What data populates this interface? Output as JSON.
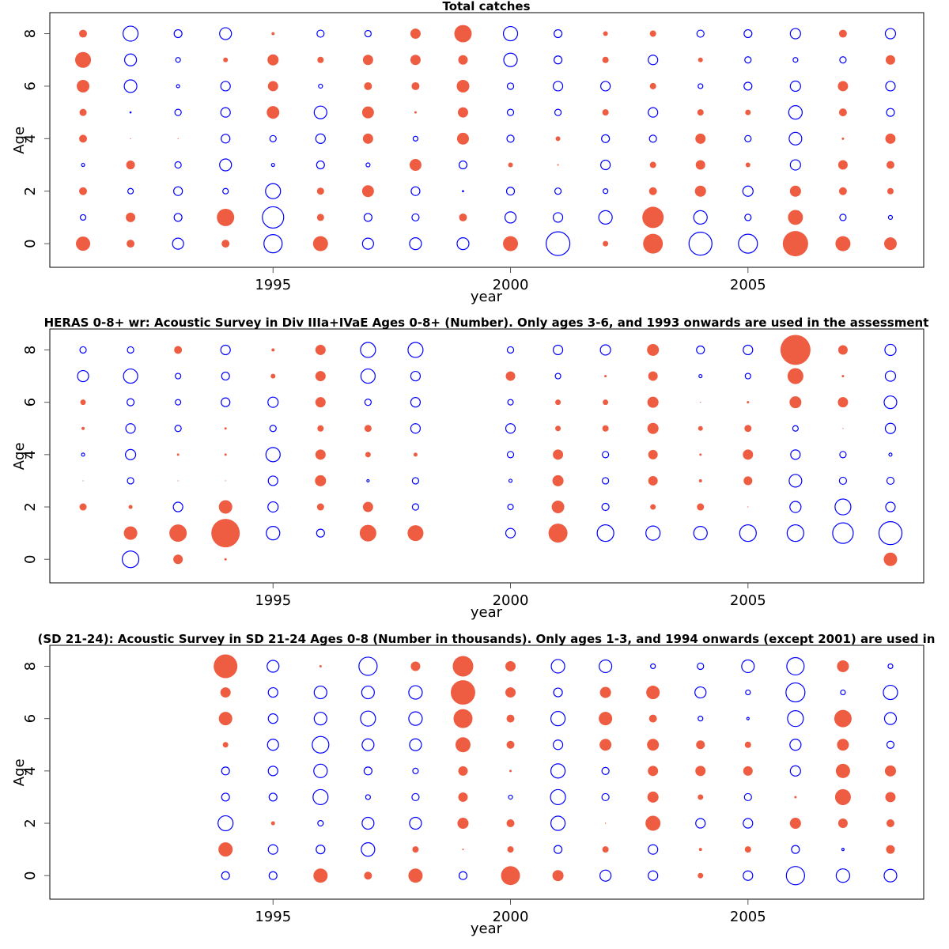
{
  "colors": {
    "positive": "#ee5c42",
    "negative": "#0000ff",
    "axis": "#000000"
  },
  "chart_data": [
    {
      "type": "scatter",
      "subtype": "bubble",
      "title": "Total catches",
      "xlabel": "year",
      "ylabel": "Age",
      "xticks": [
        1995,
        2000,
        2005
      ],
      "yticks": [
        0,
        2,
        4,
        6,
        8
      ],
      "xlim": [
        1990.3,
        2008.7
      ],
      "ylim": [
        -0.9,
        8.8
      ],
      "encoding": "signed residual: positive = filled red bubble, negative = open blue circle, size ∝ |value|",
      "years": [
        1991,
        1992,
        1993,
        1994,
        1995,
        1996,
        1997,
        1998,
        1999,
        2000,
        2001,
        2002,
        2003,
        2004,
        2005,
        2006,
        2007,
        2008
      ],
      "ages": [
        8,
        7,
        6,
        5,
        4,
        3,
        2,
        1,
        0
      ],
      "values": [
        [
          0.83,
          -1.58,
          -0.83,
          -1.25,
          0.33,
          -0.75,
          -0.67,
          1.08,
          1.83,
          -1.5,
          -0.83,
          0.5,
          0.67,
          -0.75,
          -0.83,
          -1.08,
          0.83,
          -1.08
        ],
        [
          1.67,
          -1.25,
          -0.5,
          0.5,
          1.17,
          0.67,
          1.08,
          1.08,
          1.0,
          -1.42,
          -0.83,
          0.67,
          -1.0,
          0.5,
          -0.67,
          -0.5,
          -0.67,
          1.0
        ],
        [
          1.33,
          -1.33,
          -0.33,
          -1.0,
          1.08,
          -0.42,
          0.83,
          0.83,
          1.33,
          -0.67,
          -1.0,
          -1.0,
          0.67,
          -0.5,
          -0.83,
          -1.08,
          1.08,
          -1.0
        ],
        [
          0.75,
          -0.12,
          -0.67,
          -1.0,
          1.33,
          -1.33,
          1.25,
          0.25,
          1.08,
          -0.67,
          -0.67,
          0.67,
          -1.0,
          0.67,
          0.58,
          -1.42,
          0.83,
          -0.83
        ],
        [
          0.83,
          0.08,
          0.08,
          -0.92,
          -0.67,
          -1.0,
          1.08,
          -0.5,
          1.25,
          -0.75,
          0.5,
          -0.83,
          -0.75,
          1.08,
          -0.67,
          -1.33,
          0.25,
          1.08
        ],
        [
          -0.33,
          0.92,
          -0.67,
          -1.25,
          -0.33,
          -0.83,
          -0.42,
          1.25,
          -0.83,
          0.5,
          0.17,
          -1.0,
          0.67,
          1.0,
          0.5,
          -1.08,
          1.0,
          0.83
        ],
        [
          0.83,
          -0.58,
          -0.92,
          -0.58,
          -1.58,
          0.75,
          1.25,
          -0.92,
          -0.13,
          -0.83,
          -0.67,
          -0.5,
          0.83,
          1.17,
          -1.08,
          1.17,
          0.83,
          0.67
        ],
        [
          -0.58,
          1.0,
          -0.83,
          1.83,
          -2.25,
          0.75,
          -0.83,
          -0.75,
          0.83,
          -1.17,
          -1.0,
          -1.42,
          2.25,
          -1.42,
          -0.67,
          1.58,
          -0.67,
          -0.42
        ],
        [
          1.5,
          0.83,
          -1.17,
          0.83,
          -1.92,
          1.58,
          -1.17,
          -1.25,
          -1.25,
          1.58,
          -2.5,
          0.58,
          2.08,
          -2.42,
          -2.0,
          2.67,
          1.58,
          1.33
        ]
      ]
    },
    {
      "type": "scatter",
      "subtype": "bubble",
      "title": "HERAS 0-8+ wr: Acoustic Survey in Div IIIa+IVaE Ages 0-8+ (Number). Only ages 3-6, and 1993 onwards are used in the assessment",
      "xlabel": "year",
      "ylabel": "Age",
      "xticks": [
        1995,
        2000,
        2005
      ],
      "yticks": [
        0,
        2,
        4,
        6,
        8
      ],
      "xlim": [
        1990.3,
        2008.7
      ],
      "ylim": [
        -0.9,
        8.8
      ],
      "encoding": "signed residual: positive = filled red bubble, negative = open blue circle, size ∝ |value|",
      "years": [
        1991,
        1992,
        1993,
        1994,
        1995,
        1996,
        1997,
        1998,
        1999,
        2000,
        2001,
        2002,
        2003,
        2004,
        2005,
        2006,
        2007,
        2008
      ],
      "ages": [
        8,
        7,
        6,
        5,
        4,
        3,
        2,
        1,
        0
      ],
      "values": [
        [
          -0.67,
          -0.67,
          0.83,
          -1.0,
          0.33,
          1.08,
          -1.58,
          -1.58,
          null,
          -0.67,
          -1.0,
          -1.08,
          1.25,
          -0.83,
          -1.0,
          3.17,
          1.0,
          -1.17
        ],
        [
          -1.17,
          -1.5,
          -0.58,
          -0.83,
          0.5,
          1.08,
          -1.5,
          -1.0,
          null,
          1.0,
          -0.58,
          0.25,
          1.0,
          -0.33,
          -0.58,
          1.67,
          0.25,
          -1.08
        ],
        [
          0.58,
          -0.75,
          -0.58,
          -0.92,
          -1.08,
          1.08,
          -0.67,
          -1.0,
          null,
          -0.58,
          0.58,
          0.58,
          1.17,
          0.08,
          0.25,
          1.25,
          1.08,
          -1.33
        ],
        [
          0.33,
          -1.0,
          -0.67,
          0.25,
          -0.67,
          0.67,
          0.75,
          -1.0,
          null,
          -1.0,
          0.58,
          0.67,
          1.17,
          0.5,
          0.75,
          -0.58,
          0.08,
          -1.08
        ],
        [
          -0.33,
          -1.08,
          0.25,
          0.25,
          -1.5,
          1.08,
          0.58,
          0.42,
          null,
          -0.67,
          1.08,
          -0.67,
          1.0,
          0.25,
          1.08,
          -1.0,
          -0.67,
          -0.33
        ],
        [
          0.05,
          -0.67,
          0.05,
          0.08,
          -1.0,
          1.17,
          -0.25,
          -0.67,
          null,
          -0.33,
          1.17,
          -0.67,
          1.0,
          0.33,
          0.92,
          -1.33,
          -0.75,
          -0.75
        ],
        [
          0.75,
          0.42,
          -1.0,
          1.42,
          -1.08,
          0.75,
          1.08,
          -0.67,
          null,
          -0.58,
          1.33,
          -0.75,
          0.58,
          0.75,
          0.05,
          -1.17,
          -1.67,
          -1.0
        ],
        [
          null,
          1.42,
          1.83,
          3.0,
          -1.42,
          -0.83,
          1.75,
          1.67,
          null,
          -1.0,
          2.0,
          -1.75,
          -1.5,
          -1.42,
          -1.75,
          -1.75,
          -2.17,
          -2.42
        ],
        [
          null,
          -1.75,
          1.0,
          0.25,
          null,
          null,
          null,
          null,
          null,
          null,
          null,
          null,
          null,
          null,
          null,
          null,
          null,
          1.42
        ]
      ]
    },
    {
      "type": "scatter",
      "subtype": "bubble",
      "title": "(SD 21-24): Acoustic Survey in SD 21-24 Ages 0-8 (Number in thousands). Only ages 1-3, and 1994 onwards (except 2001) are used in",
      "xlabel": "year",
      "ylabel": "Age",
      "xticks": [
        1995,
        2000,
        2005
      ],
      "yticks": [
        0,
        2,
        4,
        6,
        8
      ],
      "xlim": [
        1990.3,
        2008.7
      ],
      "ylim": [
        -0.9,
        8.8
      ],
      "encoding": "signed residual: positive = filled red bubble, negative = open blue circle, size ∝ |value|",
      "years": [
        1994,
        1995,
        1996,
        1997,
        1998,
        1999,
        2000,
        2001,
        2002,
        2003,
        2004,
        2005,
        2006,
        2007,
        2008
      ],
      "ages": [
        8,
        7,
        6,
        5,
        4,
        3,
        2,
        1,
        0
      ],
      "values": [
        [
          2.5,
          -1.25,
          0.25,
          -1.92,
          1.0,
          2.17,
          1.08,
          -1.42,
          -1.33,
          -0.5,
          -0.67,
          -1.33,
          -1.83,
          1.25,
          -0.5
        ],
        [
          1.08,
          -1.0,
          -1.33,
          -1.33,
          -1.42,
          2.58,
          1.08,
          -0.92,
          1.17,
          1.42,
          -1.17,
          -0.5,
          -2.0,
          -0.5,
          -1.5
        ],
        [
          1.42,
          -1.0,
          -1.33,
          -1.58,
          -1.42,
          2.0,
          0.83,
          -1.5,
          1.42,
          0.83,
          -0.5,
          -0.25,
          -1.67,
          1.83,
          -1.25
        ],
        [
          0.58,
          -1.17,
          -1.75,
          -1.25,
          -1.25,
          1.58,
          0.83,
          -1.0,
          1.25,
          1.25,
          0.92,
          0.67,
          -1.17,
          1.25,
          -0.75
        ],
        [
          -0.83,
          -1.0,
          -1.42,
          -0.83,
          -0.58,
          1.0,
          0.25,
          -1.5,
          -0.75,
          1.08,
          1.08,
          1.0,
          -1.08,
          1.5,
          1.17
        ],
        [
          -0.83,
          -0.83,
          -1.58,
          -0.5,
          -0.75,
          1.0,
          -0.42,
          -1.58,
          -0.75,
          1.17,
          0.58,
          -0.75,
          0.25,
          1.67,
          1.08
        ],
        [
          -1.58,
          0.42,
          -0.58,
          -1.25,
          -1.25,
          1.17,
          0.83,
          -1.5,
          0.12,
          1.58,
          -1.0,
          -1.0,
          1.17,
          1.0,
          0.83
        ],
        [
          1.5,
          -1.0,
          -0.92,
          -1.42,
          0.67,
          0.17,
          0.67,
          -0.83,
          0.67,
          -1.0,
          0.33,
          0.67,
          -0.83,
          -0.25,
          0.92
        ],
        [
          -0.83,
          -0.83,
          1.5,
          0.83,
          1.5,
          -0.83,
          2.0,
          1.17,
          -1.17,
          -1.0,
          0.58,
          -1.0,
          -1.92,
          -1.42,
          -1.33
        ]
      ]
    }
  ]
}
